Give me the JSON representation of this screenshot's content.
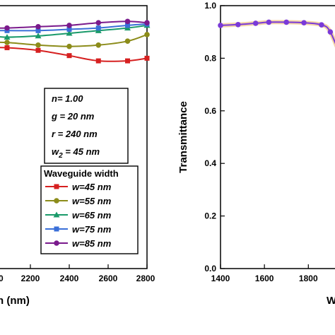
{
  "chart_data": [
    {
      "type": "line",
      "panel": "left",
      "xlabel_visible": "h (nm)",
      "ylabel": "",
      "xlim": [
        2000,
        2800
      ],
      "ylim": [
        0.0,
        1.0
      ],
      "xticks": [
        "2200",
        "2400",
        "2600",
        "2800"
      ],
      "params": [
        "n= 1.00",
        "g = 20 nm",
        "r = 240 nm",
        "w₂ = 45 nm"
      ],
      "legend_title": "Waveguide width",
      "legend_position": "bottom-right",
      "series": [
        {
          "name": "w=45 nm",
          "color": "#d62020",
          "marker": "square",
          "x": [
            2000,
            2080,
            2240,
            2400,
            2550,
            2700,
            2800
          ],
          "y": [
            0.84,
            0.84,
            0.83,
            0.81,
            0.79,
            0.79,
            0.8
          ]
        },
        {
          "name": "w=55 nm",
          "color": "#8c8c1a",
          "marker": "circle",
          "x": [
            2000,
            2080,
            2240,
            2400,
            2550,
            2700,
            2800
          ],
          "y": [
            0.86,
            0.86,
            0.85,
            0.845,
            0.85,
            0.865,
            0.89
          ]
        },
        {
          "name": "w=65 nm",
          "color": "#1a9a6a",
          "marker": "triangle",
          "x": [
            2000,
            2080,
            2240,
            2400,
            2550,
            2700,
            2800
          ],
          "y": [
            0.885,
            0.88,
            0.885,
            0.895,
            0.905,
            0.915,
            0.925
          ]
        },
        {
          "name": "w=75 nm",
          "color": "#3a6fd8",
          "marker": "square",
          "x": [
            2000,
            2080,
            2240,
            2400,
            2550,
            2700,
            2800
          ],
          "y": [
            0.905,
            0.905,
            0.905,
            0.91,
            0.915,
            0.925,
            0.93
          ]
        },
        {
          "name": "w=85 nm",
          "color": "#7a1a8c",
          "marker": "circle",
          "x": [
            2000,
            2080,
            2240,
            2400,
            2550,
            2700,
            2800
          ],
          "y": [
            0.915,
            0.915,
            0.92,
            0.925,
            0.935,
            0.94,
            0.935
          ]
        }
      ]
    },
    {
      "type": "line",
      "panel": "right",
      "xlabel_visible": "W",
      "ylabel": "Transmittance",
      "xlim": [
        1400,
        1960
      ],
      "ylim": [
        0.0,
        1.0
      ],
      "xticks": [
        "1400",
        "1600",
        "1800"
      ],
      "yticks": [
        "0.0",
        "0.2",
        "0.4",
        "0.6",
        "0.8",
        "1.0"
      ],
      "series": [
        {
          "name": "",
          "color": "#7a3ad8",
          "marker": "circle",
          "x": [
            1400,
            1480,
            1560,
            1620,
            1700,
            1780,
            1860,
            1900,
            1960
          ],
          "y": [
            0.925,
            0.928,
            0.933,
            0.937,
            0.937,
            0.935,
            0.927,
            0.9,
            0.78
          ]
        }
      ]
    }
  ]
}
